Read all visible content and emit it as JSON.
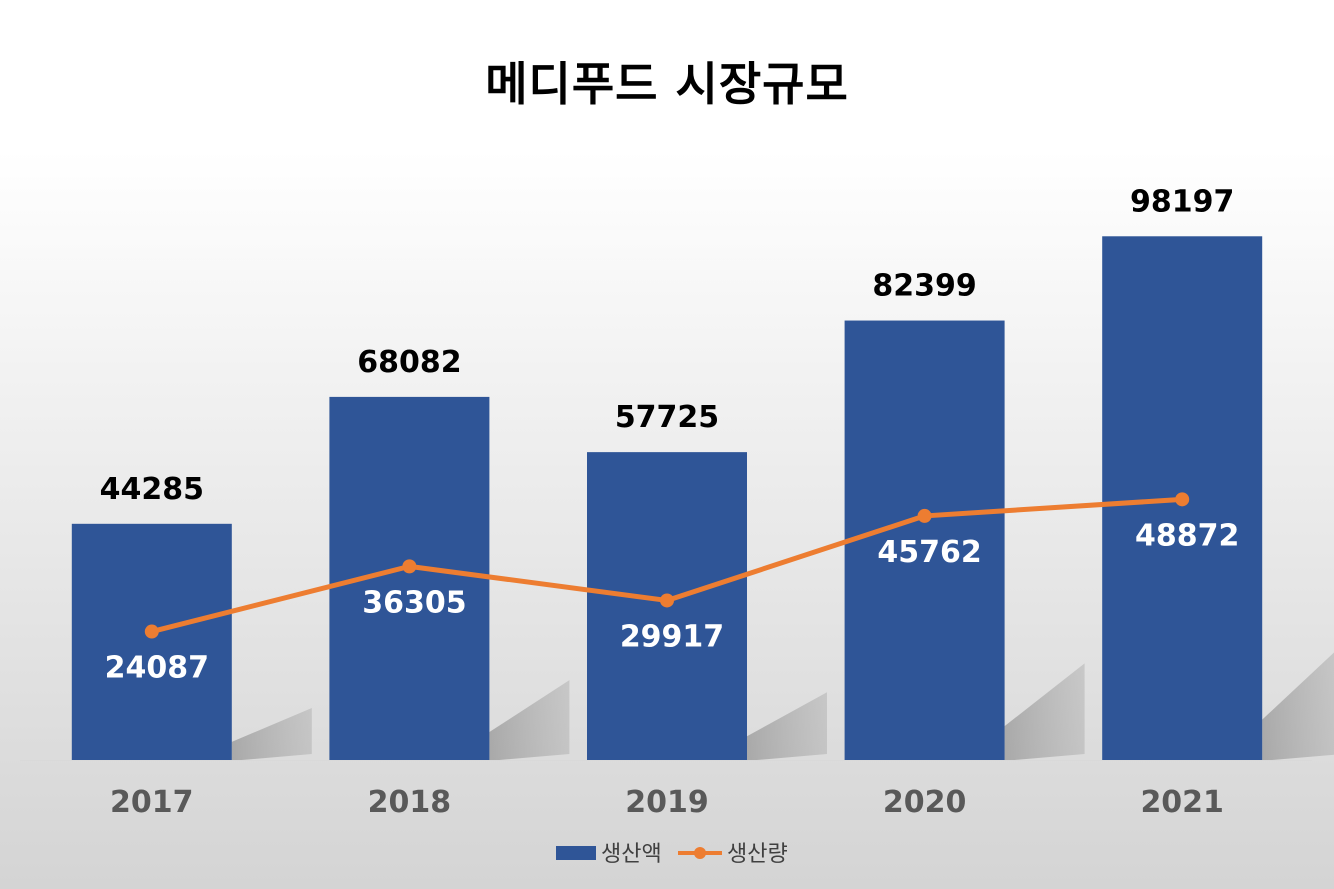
{
  "chart_data": {
    "type": "bar",
    "title": "메디푸드 시장규모",
    "categories": [
      "2017",
      "2018",
      "2019",
      "2020",
      "2021"
    ],
    "series": [
      {
        "name": "생산액",
        "type": "bar",
        "color": "#2F5597",
        "values": [
          44285,
          68082,
          57725,
          82399,
          98197
        ]
      },
      {
        "name": "생산량",
        "type": "line",
        "color": "#ED7D31",
        "values": [
          24087,
          36305,
          29917,
          45762,
          48872
        ]
      }
    ],
    "ylim": [
      0,
      120000
    ],
    "grid": false,
    "legend_position": "bottom"
  }
}
